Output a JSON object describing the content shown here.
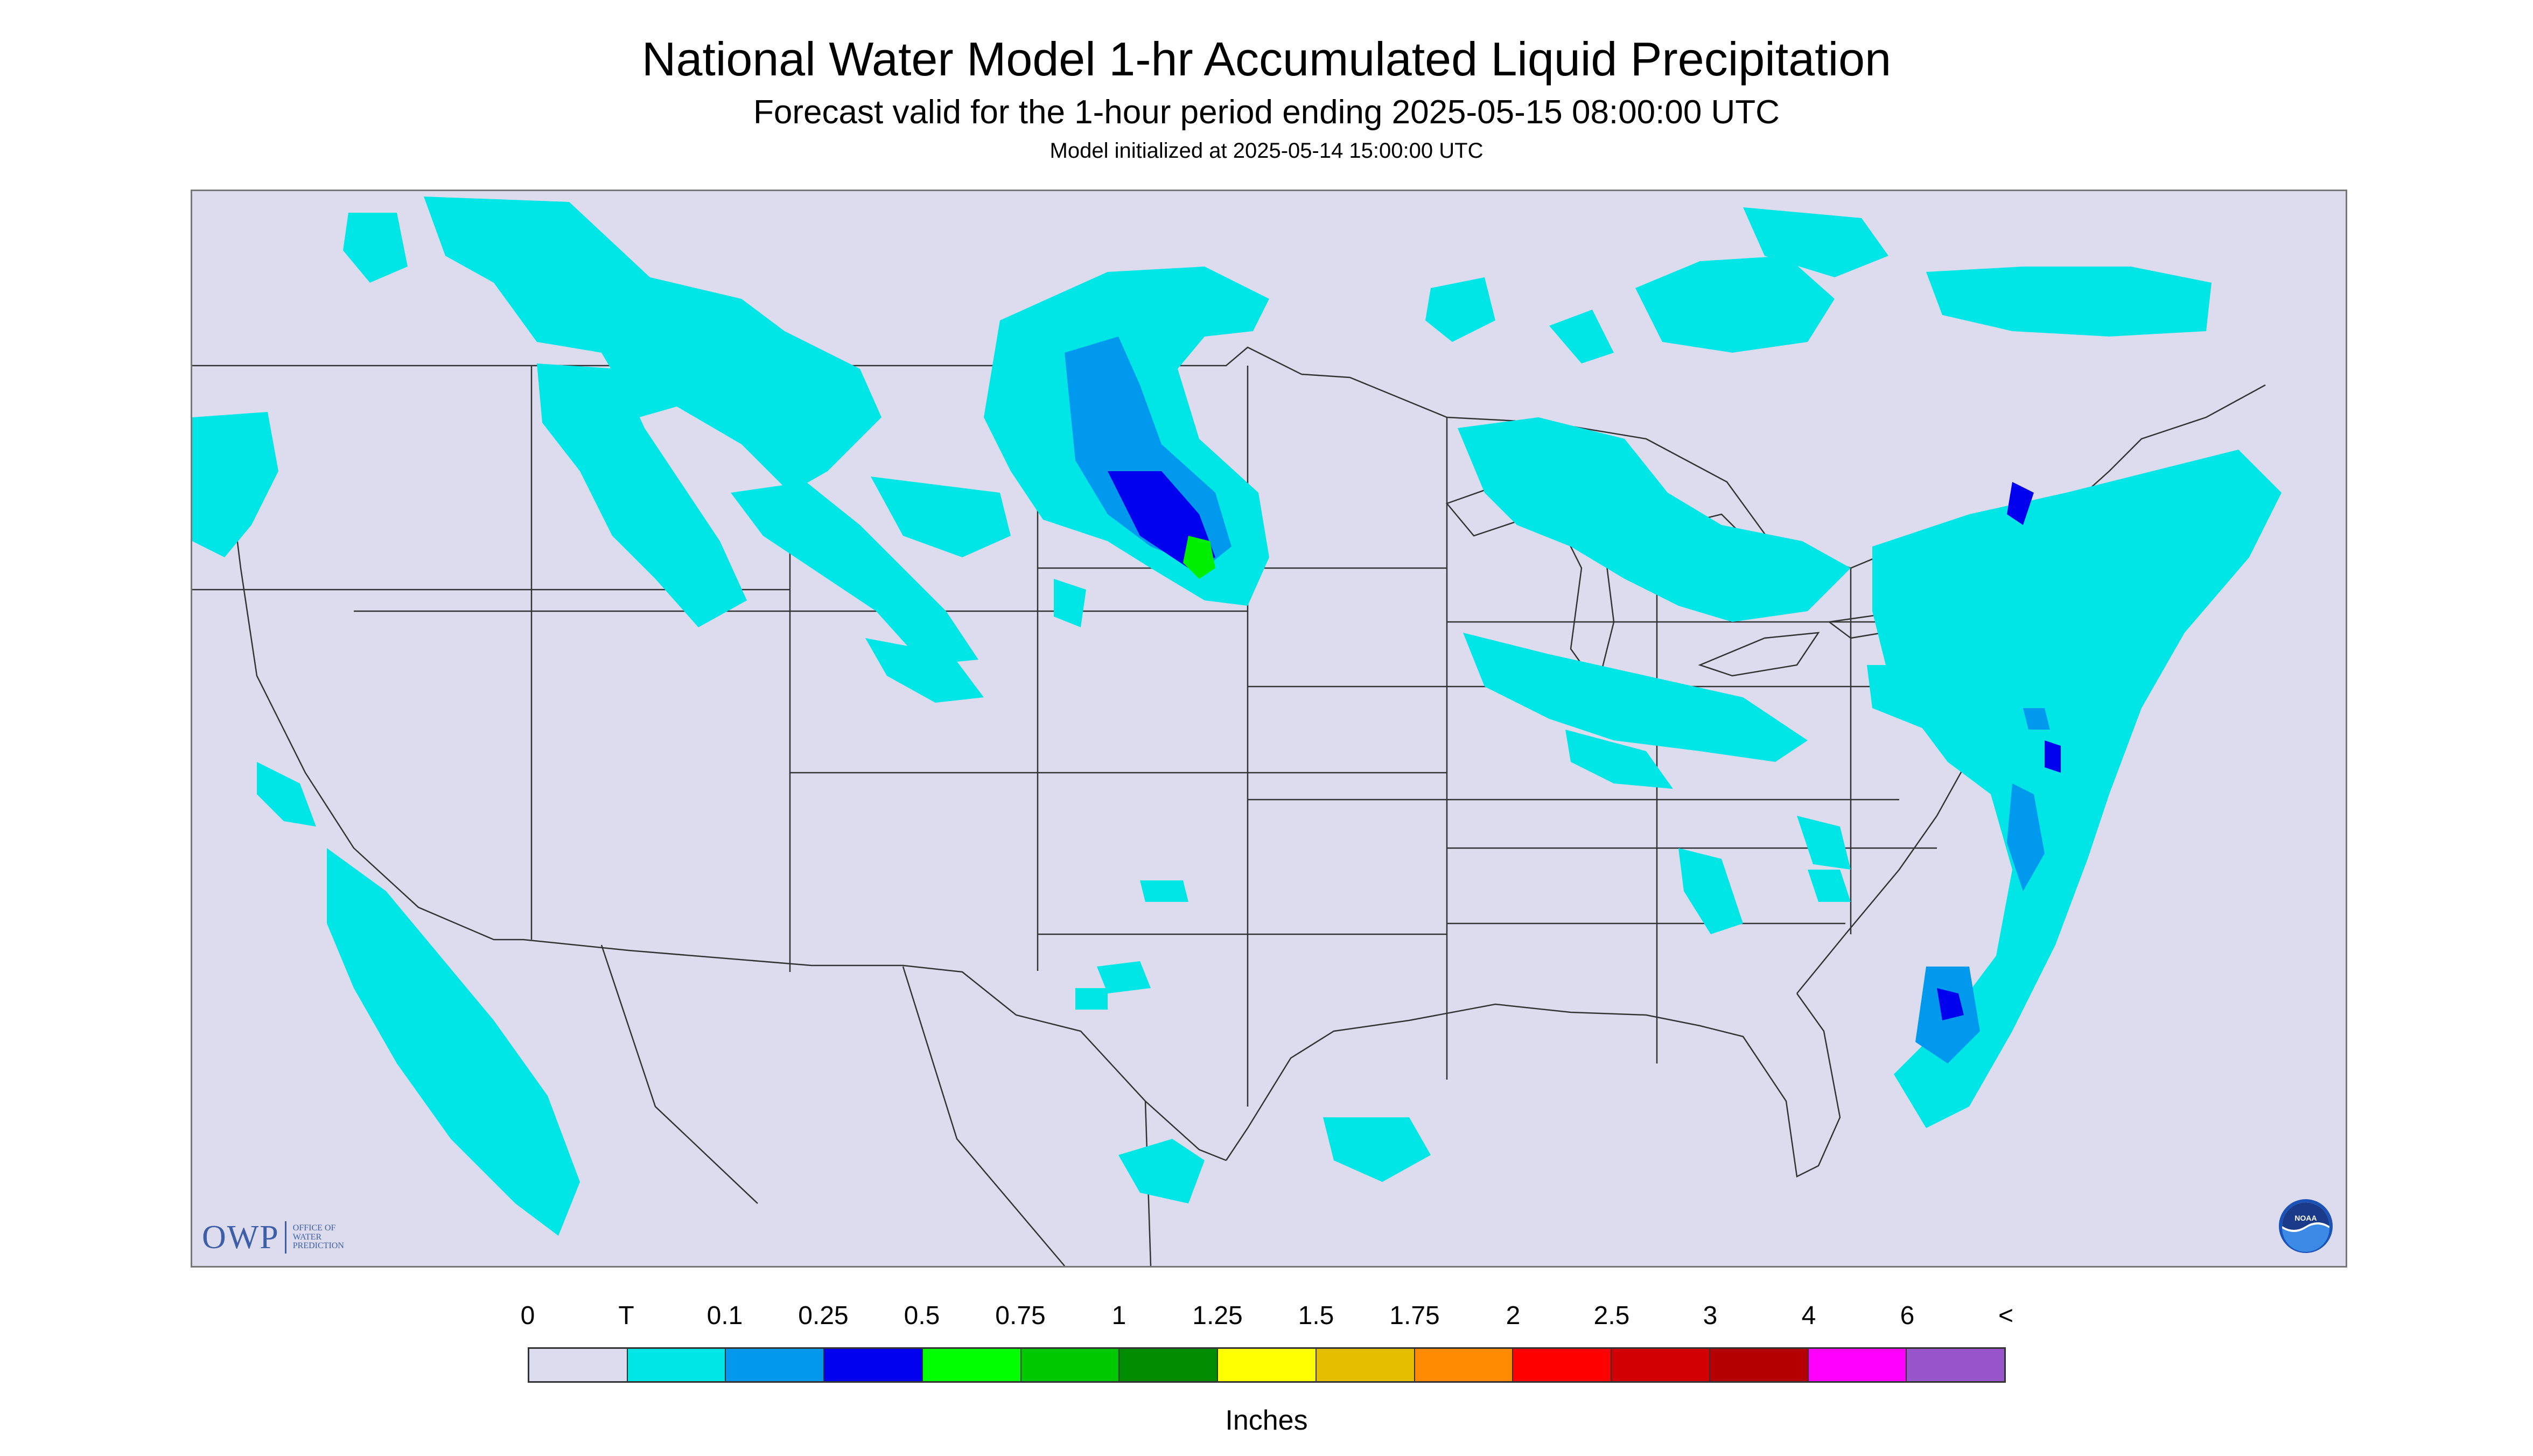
{
  "header": {
    "title": "National Water Model 1-hr Accumulated Liquid Precipitation",
    "subtitle": "Forecast valid for the 1-hour period ending 2025-05-15 08:00:00 UTC",
    "init_line": "Model initialized at 2025-05-14 15:00:00 UTC"
  },
  "map": {
    "background_color": "#dcdcee",
    "precip_colors": {
      "light": "#00e6e6",
      "moderate": "#0099ee",
      "heavy": "#0000ee",
      "very_heavy": "#00ee00"
    }
  },
  "logos": {
    "owp_word": "OWP",
    "owp_line1": "OFFICE OF",
    "owp_line2": "WATER",
    "owp_line3": "PREDICTION",
    "noaa": "NOAA"
  },
  "legend": {
    "labels": [
      "0",
      "T",
      "0.1",
      "0.25",
      "0.5",
      "0.75",
      "1",
      "1.25",
      "1.5",
      "1.75",
      "2",
      "2.5",
      "3",
      "4",
      "6",
      "<"
    ],
    "colors": [
      "#dcdcee",
      "#00e6e6",
      "#0099ee",
      "#0000ee",
      "#00ff00",
      "#00c800",
      "#008c00",
      "#ffff00",
      "#e6be00",
      "#ff8c00",
      "#ff0000",
      "#d20000",
      "#b40000",
      "#ff00ff",
      "#9955cc"
    ],
    "units": "Inches"
  }
}
